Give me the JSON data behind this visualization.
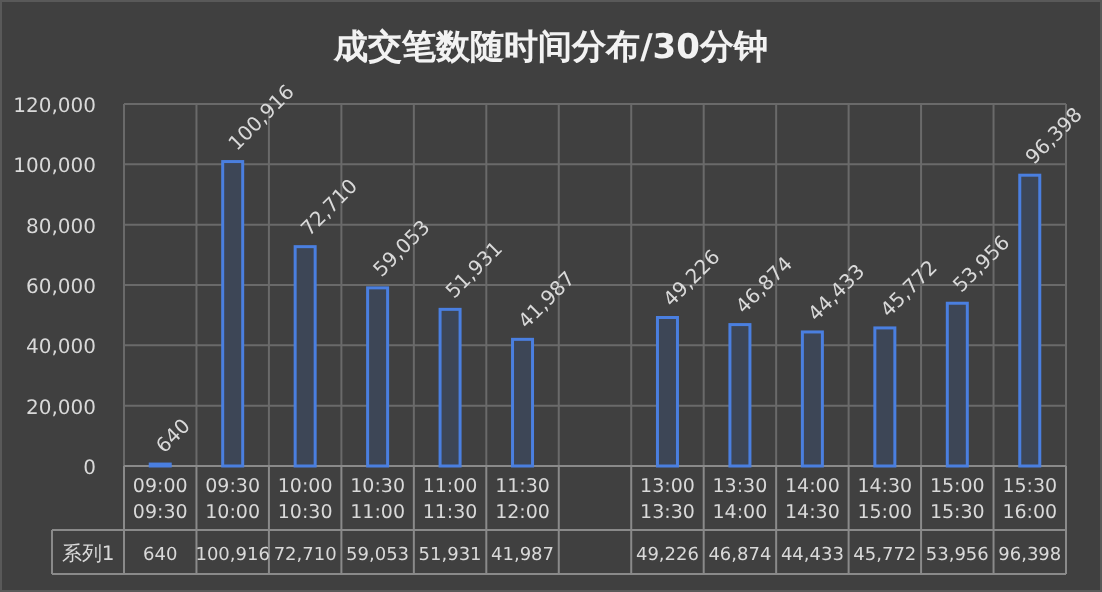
{
  "chart_data": {
    "type": "bar",
    "title": "成交笔数随时间分布/30分钟",
    "categories": [
      "09:00\n09:30",
      "09:30\n10:00",
      "10:00\n10:30",
      "10:30\n11:00",
      "11:00\n11:30",
      "11:30\n12:00",
      null,
      "13:00\n13:30",
      "13:30\n14:00",
      "14:00\n14:30",
      "14:30\n15:00",
      "15:00\n15:30",
      "15:30\n16:00"
    ],
    "series": [
      {
        "name": "系列1",
        "color": "#4a7fe0",
        "values": [
          640,
          100916,
          72710,
          59053,
          51931,
          41987,
          null,
          49226,
          46874,
          44433,
          45772,
          53956,
          96398
        ],
        "value_labels": [
          "640",
          "100,916",
          "72,710",
          "59,053",
          "51,931",
          "41,987",
          null,
          "49,226",
          "46,874",
          "44,433",
          "45,772",
          "53,956",
          "96,398"
        ]
      }
    ],
    "ylim": [
      0,
      120000
    ],
    "yticks": [
      {
        "value": 0,
        "label": "0"
      },
      {
        "value": 20000,
        "label": "20,000"
      },
      {
        "value": 40000,
        "label": "40,000"
      },
      {
        "value": 60000,
        "label": "60,000"
      },
      {
        "value": 80000,
        "label": "80,000"
      },
      {
        "value": 100000,
        "label": "100,000"
      },
      {
        "value": 120000,
        "label": "120,000"
      }
    ],
    "grid": true
  }
}
